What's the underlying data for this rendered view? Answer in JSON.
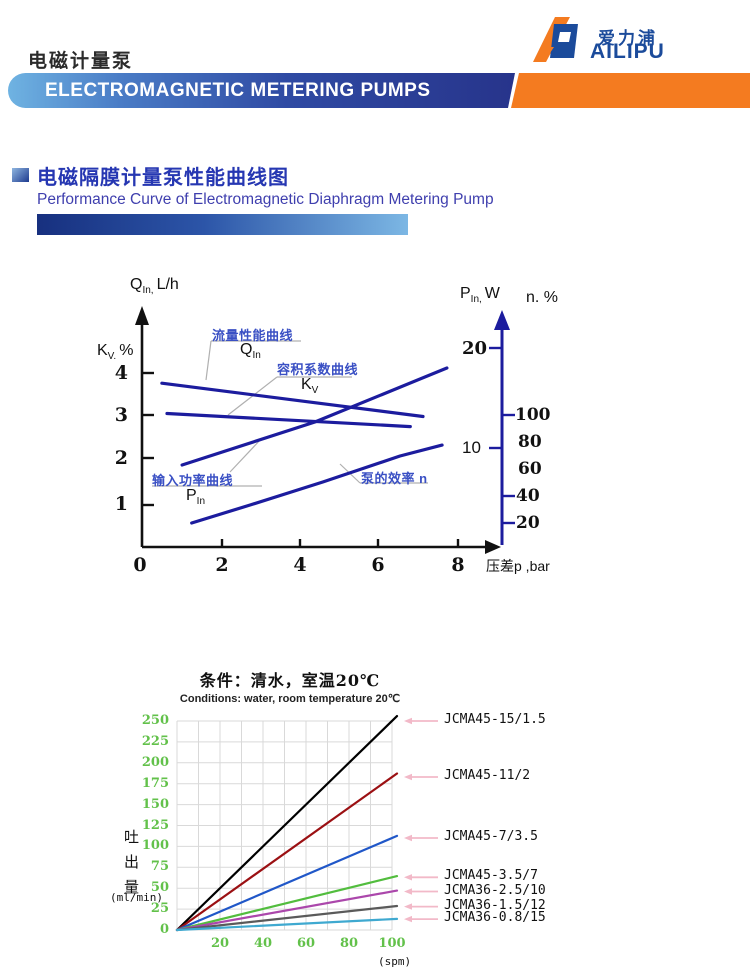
{
  "header": {
    "title_zh": "电磁计量泵",
    "banner_text": "ELECTROMAGNETIC METERING PUMPS",
    "logo_zh": "爱力浦",
    "logo_en": "AILIPU",
    "colors": {
      "banner_orange": "#f47b20",
      "banner_blue_dark": "#27348b",
      "banner_blue_light": "#6fb3e2",
      "logo_blue": "#1b4b9b"
    }
  },
  "section": {
    "title_zh": "电磁隔膜计量泵性能曲线图",
    "title_en": "Performance Curve of Electromagnetic Diaphragm Metering Pump"
  },
  "chart_data": [
    {
      "type": "line",
      "title": "电磁隔膜计量泵性能曲线图 (performance curves vs differential pressure)",
      "xlabel": "压差p ,bar",
      "x_ticks": [
        "0",
        "2",
        "4",
        "6",
        "8"
      ],
      "x_range": [
        0,
        8.8
      ],
      "left_axis": {
        "top_label": {
          "sym": "Q",
          "sub": "In,",
          "rest": "L/h"
        },
        "side_label": {
          "sym": "K",
          "sub": "V.",
          "rest": "%"
        },
        "ticks": [
          "4",
          "3",
          "2",
          "1"
        ]
      },
      "right_axis": {
        "p_label": {
          "sym": "P",
          "sub": "In,",
          "rest": "W"
        },
        "n_label": "n. %",
        "p_ticks": [
          "20",
          "10"
        ],
        "n_ticks": [
          "100",
          "80",
          "60",
          "40",
          "20"
        ]
      },
      "curve_color": "#1c1c9e",
      "series": [
        {
          "name": "flow-performance",
          "label_zh": "流量性能曲线",
          "symbol": {
            "sym": "Q",
            "sub": "In"
          },
          "axis": "kv",
          "points": [
            [
              0.55,
              3.78
            ],
            [
              7.12,
              3.02
            ]
          ]
        },
        {
          "name": "volumetric-coefficient",
          "label_zh": "容积系数曲线",
          "symbol": {
            "sym": "K",
            "sub": "V"
          },
          "axis": "kv",
          "points": [
            [
              0.68,
              3.09
            ],
            [
              6.8,
              2.79
            ]
          ]
        },
        {
          "name": "input-power",
          "label_zh": "输入功率曲线",
          "symbol": {
            "sym": "P",
            "sub": "In"
          },
          "axis": "p",
          "points": [
            [
              1.06,
              8.3
            ],
            [
              4.4,
              12.6
            ],
            [
              7.72,
              18.0
            ]
          ]
        },
        {
          "name": "pump-efficiency",
          "label_zh": "泵的效率 n",
          "axis": "n",
          "points": [
            [
              1.3,
              20.0
            ],
            [
              2.77,
              33.5
            ],
            [
              4.6,
              50.8
            ],
            [
              6.54,
              70.4
            ],
            [
              7.6,
              78.6
            ]
          ]
        }
      ]
    },
    {
      "type": "line",
      "condition_zh": "条件：清水，室温20℃",
      "condition_en": "Conditions: water, room temperature 20℃",
      "ylabel_chars": [
        "吐",
        "出",
        "量"
      ],
      "ylabel_unit": "(ml/min)",
      "xlabel_unit": "(spm)",
      "x_range": [
        0,
        100
      ],
      "y_range": [
        0,
        250
      ],
      "y_ticks": [
        "250",
        "225",
        "200",
        "175",
        "150",
        "125",
        "100",
        "75",
        "50",
        "25",
        "0"
      ],
      "x_ticks": [
        "20",
        "40",
        "60",
        "80",
        "100"
      ],
      "grid": true,
      "tick_color": "#62c14a",
      "legend_connector_color": "#f2b9c8",
      "series": [
        {
          "model": "JCMA45-15/1.5",
          "color": "#000000",
          "x": [
            0,
            100
          ],
          "y": [
            0,
            250
          ]
        },
        {
          "model": "JCMA45-11/2",
          "color": "#9b1013",
          "x": [
            0,
            100
          ],
          "y": [
            0,
            183
          ]
        },
        {
          "model": "JCMA45-7/3.5",
          "color": "#2057c8",
          "x": [
            0,
            100
          ],
          "y": [
            0,
            110
          ]
        },
        {
          "model": "JCMA45-3.5/7",
          "color": "#52bd3e",
          "x": [
            0,
            100
          ],
          "y": [
            0,
            63
          ]
        },
        {
          "model": "JCMA36-2.5/10",
          "color": "#ab47ab",
          "x": [
            0,
            100
          ],
          "y": [
            0,
            46
          ]
        },
        {
          "model": "JCMA36-1.5/12",
          "color": "#5a5a5a",
          "x": [
            0,
            100
          ],
          "y": [
            0,
            28
          ]
        },
        {
          "model": "JCMA36-0.8/15",
          "color": "#3fa9d0",
          "x": [
            0,
            100
          ],
          "y": [
            0,
            13
          ]
        }
      ]
    }
  ]
}
